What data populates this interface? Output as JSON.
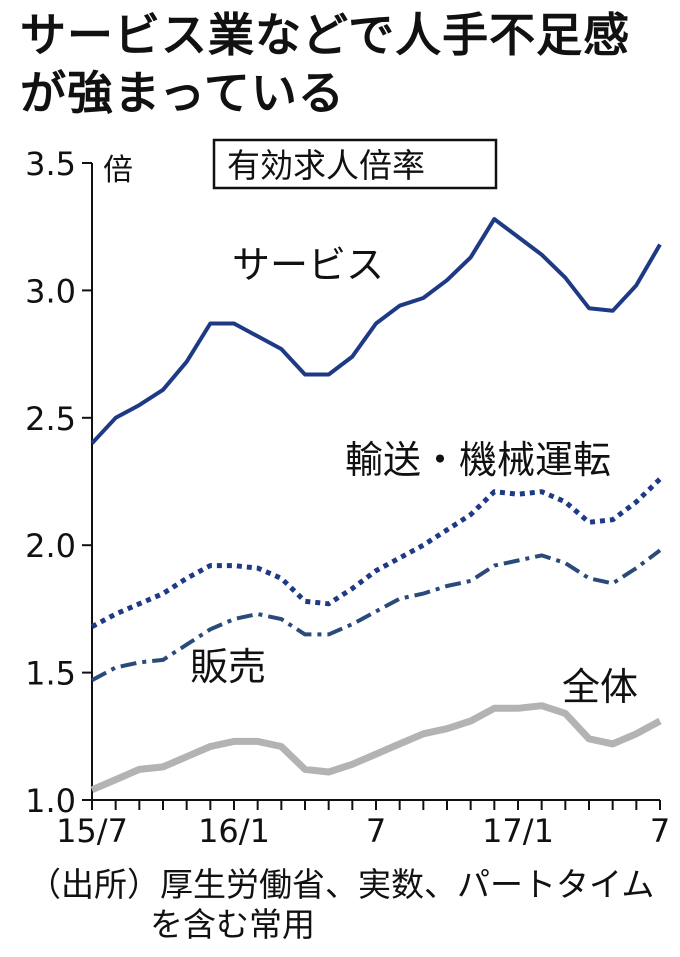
{
  "title_line1": "サービス業などで人手不足感",
  "title_line2": "が強まっている",
  "source_line1": "（出所）厚生労働省、実数、パートタイム",
  "source_line2": "を含む常用",
  "chart_data": {
    "type": "line",
    "title": "有効求人倍率",
    "unit": "倍",
    "xlabel": "",
    "ylabel": "有効求人倍率",
    "ylim": [
      1.0,
      3.5
    ],
    "yticks": [
      "1.0",
      "1.5",
      "2.0",
      "2.5",
      "3.0",
      "3.5"
    ],
    "x": [
      "15/7",
      "15/8",
      "15/9",
      "15/10",
      "15/11",
      "15/12",
      "16/1",
      "16/2",
      "16/3",
      "16/4",
      "16/5",
      "16/6",
      "16/7",
      "16/8",
      "16/9",
      "16/10",
      "16/11",
      "16/12",
      "17/1",
      "17/2",
      "17/3",
      "17/4",
      "17/5",
      "17/6",
      "17/7"
    ],
    "xtick_labels": [
      "15/7",
      "16/1",
      "7",
      "17/1",
      "7"
    ],
    "grid": false,
    "series": [
      {
        "name": "サービス",
        "color": "#1e3a85",
        "style": "solid",
        "values": [
          2.4,
          2.5,
          2.55,
          2.61,
          2.72,
          2.87,
          2.87,
          2.82,
          2.77,
          2.67,
          2.67,
          2.74,
          2.87,
          2.94,
          2.97,
          3.04,
          3.13,
          3.28,
          3.21,
          3.14,
          3.05,
          2.93,
          2.92,
          3.02,
          3.18
        ]
      },
      {
        "name": "輸送・機械運転",
        "color": "#1e3a85",
        "style": "dotted",
        "values": [
          1.68,
          1.73,
          1.77,
          1.81,
          1.87,
          1.92,
          1.92,
          1.91,
          1.87,
          1.78,
          1.77,
          1.83,
          1.9,
          1.95,
          2.0,
          2.06,
          2.12,
          2.21,
          2.2,
          2.21,
          2.17,
          2.09,
          2.1,
          2.17,
          2.26
        ]
      },
      {
        "name": "販売",
        "color": "#2a4a7a",
        "style": "dashdot",
        "values": [
          1.47,
          1.52,
          1.54,
          1.55,
          1.61,
          1.67,
          1.71,
          1.73,
          1.71,
          1.65,
          1.65,
          1.69,
          1.74,
          1.79,
          1.81,
          1.84,
          1.86,
          1.92,
          1.94,
          1.96,
          1.93,
          1.87,
          1.85,
          1.91,
          1.98
        ]
      },
      {
        "name": "全体",
        "color": "#b3b3b3",
        "style": "solid",
        "values": [
          1.04,
          1.08,
          1.12,
          1.13,
          1.17,
          1.21,
          1.23,
          1.23,
          1.21,
          1.12,
          1.11,
          1.14,
          1.18,
          1.22,
          1.26,
          1.28,
          1.31,
          1.36,
          1.36,
          1.37,
          1.34,
          1.24,
          1.22,
          1.26,
          1.31
        ]
      }
    ]
  }
}
